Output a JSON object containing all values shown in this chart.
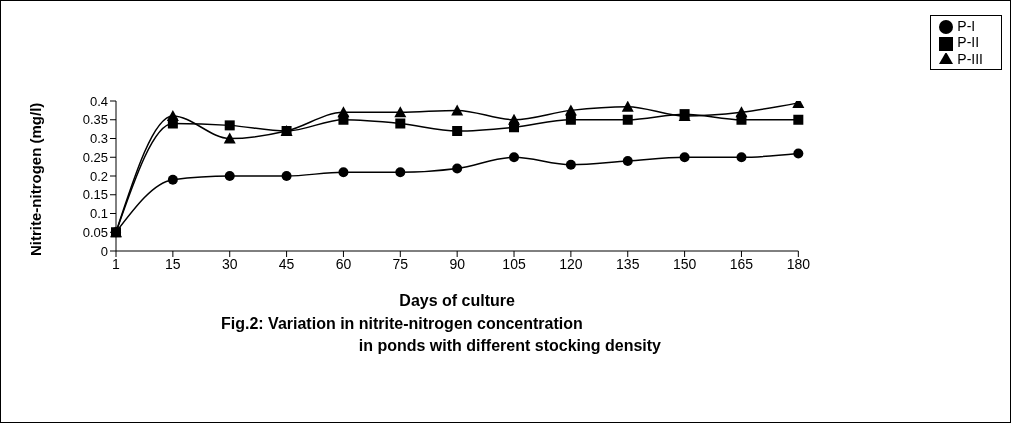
{
  "chart_data": {
    "type": "line",
    "title": "Fig.2: Variation in nitrite-nitrogen concentration\nin ponds with different stocking density",
    "xlabel": "Days of culture",
    "ylabel": "Nitrite-nitrogen  (mg/l)",
    "categories": [
      "1",
      "15",
      "30",
      "45",
      "60",
      "75",
      "90",
      "105",
      "120",
      "135",
      "150",
      "165",
      "180"
    ],
    "series": [
      {
        "name": "P-I",
        "color": "#000000",
        "marker": "circle",
        "values": [
          0.05,
          0.19,
          0.2,
          0.2,
          0.21,
          0.21,
          0.22,
          0.25,
          0.23,
          0.24,
          0.25,
          0.25,
          0.26
        ]
      },
      {
        "name": "P-II",
        "color": "#000000",
        "marker": "square",
        "values": [
          0.05,
          0.34,
          0.335,
          0.32,
          0.35,
          0.34,
          0.32,
          0.33,
          0.35,
          0.35,
          0.365,
          0.35,
          0.35
        ]
      },
      {
        "name": "P-III",
        "color": "#000000",
        "marker": "triangle",
        "values": [
          0.05,
          0.36,
          0.3,
          0.32,
          0.37,
          0.37,
          0.375,
          0.35,
          0.375,
          0.385,
          0.36,
          0.37,
          0.395
        ]
      }
    ],
    "ylim": [
      0,
      0.4
    ],
    "yticks": [
      0,
      0.05,
      0.1,
      0.15,
      0.2,
      0.25,
      0.3,
      0.35,
      0.4
    ],
    "grid": false,
    "legend": "top right",
    "line_style": "solid"
  }
}
